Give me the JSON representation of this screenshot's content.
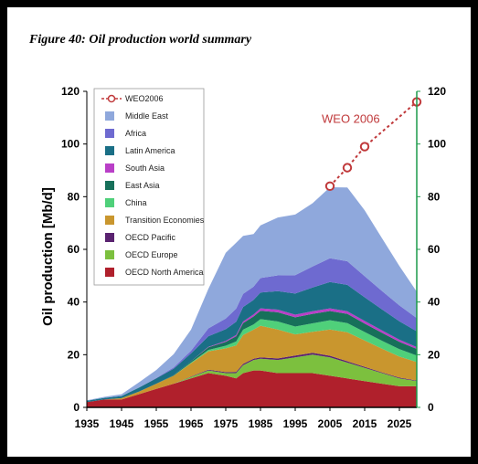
{
  "chart_data": {
    "type": "area",
    "title": "Figure 40: Oil production world summary",
    "ylabel": "Oil production [Mb/d]",
    "xlabel": "",
    "xlim": [
      1935,
      2030
    ],
    "ylim": [
      0,
      120
    ],
    "x_ticks": [
      "1935",
      "1945",
      "1955",
      "1965",
      "1975",
      "1985",
      "1995",
      "2005",
      "2015",
      "2025"
    ],
    "y_ticks": [
      "0",
      "20",
      "40",
      "60",
      "80",
      "100",
      "120"
    ],
    "grid": false,
    "legend_position": "top-left",
    "x": [
      1935,
      1940,
      1945,
      1950,
      1955,
      1960,
      1965,
      1970,
      1975,
      1978,
      1980,
      1983,
      1985,
      1990,
      1995,
      2000,
      2005,
      2010,
      2015,
      2020,
      2025,
      2030
    ],
    "series": [
      {
        "name": "OECD North America",
        "color": "#b0202c",
        "values": [
          2,
          3,
          3,
          5,
          7,
          9,
          11,
          13,
          12,
          11,
          13,
          14,
          14,
          13,
          13,
          13,
          12,
          11,
          10,
          9,
          8,
          8
        ]
      },
      {
        "name": "OECD Europe",
        "color": "#7cc03e",
        "values": [
          0,
          0,
          0,
          0,
          0,
          0,
          0.5,
          1,
          1,
          2,
          3,
          4,
          4.5,
          5,
          6,
          7,
          7,
          6,
          5,
          4,
          3,
          2
        ]
      },
      {
        "name": "OECD Pacific",
        "color": "#5a2370",
        "values": [
          0,
          0,
          0,
          0,
          0,
          0,
          0.2,
          0.3,
          0.4,
          0.5,
          0.5,
          0.5,
          0.5,
          0.6,
          0.7,
          0.7,
          0.6,
          0.5,
          0.4,
          0.3,
          0.3,
          0.2
        ]
      },
      {
        "name": "Transition Economies",
        "color": "#c9962e",
        "values": [
          0,
          0,
          0.5,
          1,
          2,
          3,
          5,
          7,
          9,
          10,
          11,
          11,
          12,
          11,
          8,
          8,
          10,
          11,
          10,
          9,
          8,
          7
        ]
      },
      {
        "name": "China",
        "color": "#4fd07a",
        "values": [
          0,
          0,
          0,
          0,
          0,
          0,
          0.3,
          0.5,
          1,
          1.5,
          2,
          2,
          2.5,
          3,
          3,
          3.2,
          3.5,
          3.5,
          3.2,
          3,
          2.8,
          2.5
        ]
      },
      {
        "name": "East Asia",
        "color": "#17705a",
        "values": [
          0,
          0,
          0,
          0,
          0,
          0.2,
          0.5,
          1,
          1.5,
          2,
          2.5,
          3,
          3.2,
          3.5,
          3.5,
          3.6,
          3.5,
          3.5,
          3.2,
          3,
          2.8,
          2.5
        ]
      },
      {
        "name": "South Asia",
        "color": "#b93fc7",
        "values": [
          0,
          0,
          0,
          0,
          0,
          0,
          0,
          0.2,
          0.3,
          0.5,
          0.6,
          0.8,
          0.9,
          1,
          1,
          1,
          1,
          1,
          1,
          0.9,
          0.8,
          0.7
        ]
      },
      {
        "name": "Latin America",
        "color": "#1a6f86",
        "values": [
          0.5,
          0.6,
          0.8,
          1.5,
          2,
          2.5,
          3,
          4,
          4.5,
          5,
          5.5,
          5.5,
          6,
          7,
          8,
          9,
          10,
          10,
          9,
          8,
          7,
          6
        ]
      },
      {
        "name": "Africa",
        "color": "#6e6ad0",
        "values": [
          0,
          0,
          0,
          0,
          0.2,
          0.5,
          1,
          3,
          4,
          5,
          5,
          5,
          5.5,
          6,
          7,
          8,
          9,
          9,
          8,
          7,
          6,
          5
        ]
      },
      {
        "name": "Middle East",
        "color": "#8fa8dc",
        "values": [
          0.2,
          0.4,
          0.7,
          2,
          3,
          5,
          8,
          15,
          25,
          25,
          22,
          20,
          20,
          22,
          23,
          24,
          27,
          28,
          25,
          20,
          15,
          10
        ]
      }
    ],
    "weo": {
      "name": "WEO2006",
      "label": "WEO 2006",
      "color": "#c0393b",
      "x": [
        2005,
        2010,
        2015,
        2030
      ],
      "values": [
        84,
        91,
        99,
        116
      ]
    }
  }
}
